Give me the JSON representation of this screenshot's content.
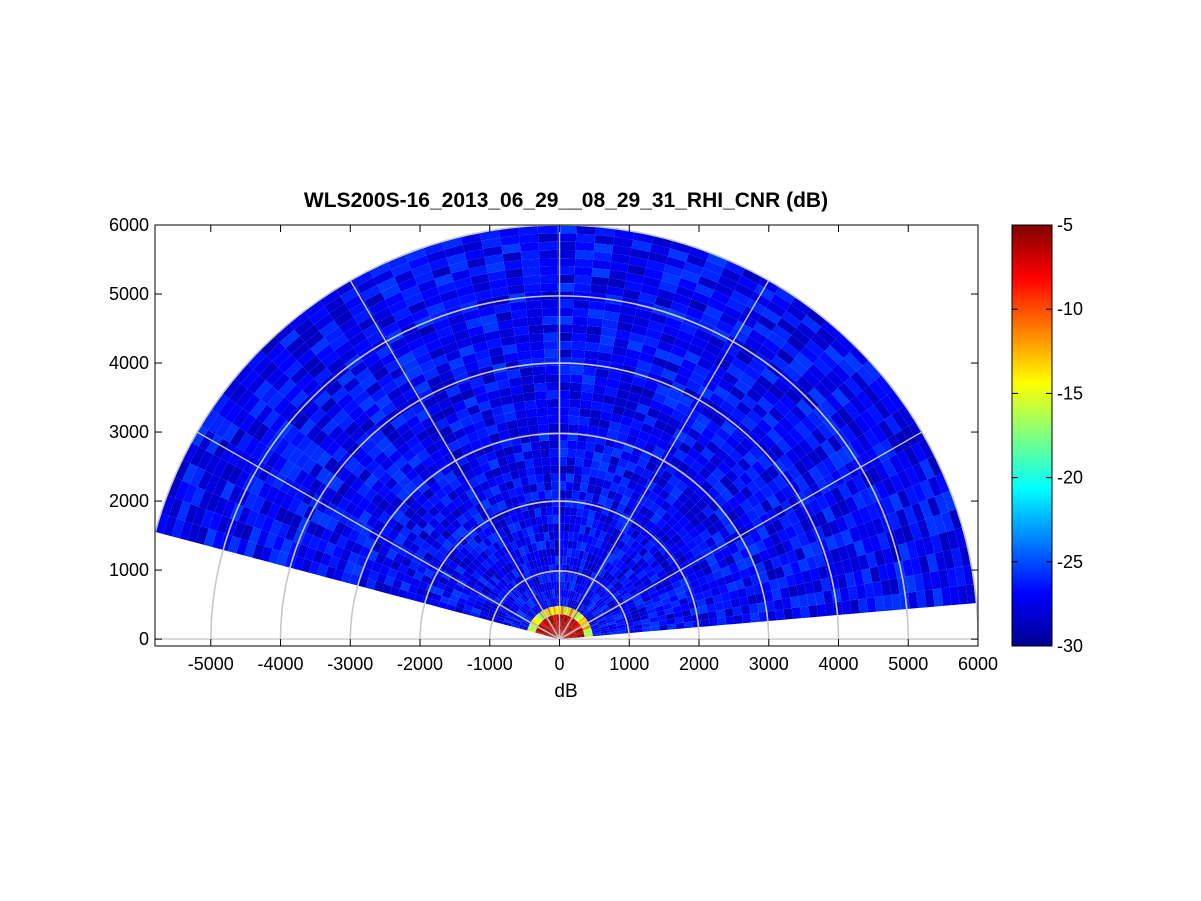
{
  "chart_data": {
    "type": "heatmap",
    "subtype": "polar-rhi-scan",
    "title": "WLS200S-16_2013_06_29__08_29_31_RHI_CNR (dB)",
    "xlabel": "dB",
    "ylabel": "",
    "xlim": [
      -5800,
      6000
    ],
    "ylim": [
      -100,
      6000
    ],
    "x_ticks": [
      -5000,
      -4000,
      -3000,
      -2000,
      -1000,
      0,
      1000,
      2000,
      3000,
      4000,
      5000,
      6000
    ],
    "y_ticks": [
      0,
      1000,
      2000,
      3000,
      4000,
      5000,
      6000
    ],
    "x_tick_labels": [
      "-5000",
      "-4000",
      "-3000",
      "-2000",
      "-1000",
      "0",
      "1000",
      "2000",
      "3000",
      "4000",
      "5000",
      "6000"
    ],
    "y_tick_labels": [
      "0",
      "1000",
      "2000",
      "3000",
      "4000",
      "5000",
      "6000"
    ],
    "polar_grid": {
      "range_rings": [
        1000,
        2000,
        3000,
        4000,
        5000,
        6000
      ],
      "spoke_angles_deg": [
        0,
        30,
        60,
        90,
        120,
        150,
        180
      ],
      "color": "#c8c8c8"
    },
    "scan": {
      "elevation_min_deg": 5,
      "elevation_max_deg": 165,
      "max_range": 6000,
      "range_gates": 50,
      "beams": 60,
      "typical_cnr_db": -27,
      "near_range_cnr_db": -6
    },
    "colorbar": {
      "min": -30,
      "max": -5,
      "ticks": [
        -5,
        -10,
        -15,
        -20,
        -25,
        -30
      ],
      "tick_labels": [
        "-5",
        "-10",
        "-15",
        "-20",
        "-25",
        "-30"
      ],
      "colormap": "jet"
    },
    "grid": false,
    "legend": "none"
  }
}
